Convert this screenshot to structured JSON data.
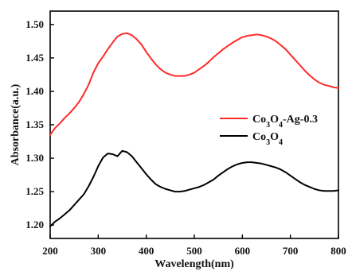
{
  "chart_data": {
    "type": "line",
    "xlabel": "Wavelength(nm)",
    "ylabel": "Absorbance(a.u.)",
    "xlim": [
      200,
      800
    ],
    "ylim": [
      1.18,
      1.52
    ],
    "xticks": [
      "200",
      "300",
      "400",
      "500",
      "600",
      "700",
      "800"
    ],
    "yticks": [
      "1.20",
      "1.25",
      "1.30",
      "1.35",
      "1.40",
      "1.45",
      "1.50"
    ],
    "grid": false,
    "legend_position": "center-right",
    "series": [
      {
        "name": "Co3O4-Ag-0.3",
        "name_parts": [
          {
            "text": "Co",
            "sub": false
          },
          {
            "text": "3",
            "sub": true
          },
          {
            "text": "O",
            "sub": false
          },
          {
            "text": "4",
            "sub": true
          },
          {
            "text": "-Ag-0.3",
            "sub": false
          }
        ],
        "color": "#ff2a2a",
        "x": [
          200,
          210,
          220,
          230,
          240,
          250,
          260,
          270,
          280,
          290,
          300,
          310,
          320,
          330,
          340,
          350,
          360,
          370,
          380,
          390,
          400,
          410,
          420,
          430,
          440,
          450,
          460,
          470,
          480,
          490,
          500,
          510,
          520,
          530,
          540,
          550,
          560,
          570,
          580,
          590,
          600,
          610,
          620,
          630,
          640,
          650,
          660,
          670,
          680,
          690,
          700,
          710,
          720,
          730,
          740,
          750,
          760,
          770,
          780,
          790,
          800
        ],
        "values": [
          1.335,
          1.345,
          1.352,
          1.36,
          1.367,
          1.375,
          1.384,
          1.396,
          1.41,
          1.428,
          1.442,
          1.452,
          1.463,
          1.473,
          1.482,
          1.486,
          1.487,
          1.484,
          1.478,
          1.47,
          1.459,
          1.449,
          1.44,
          1.433,
          1.428,
          1.425,
          1.423,
          1.423,
          1.423,
          1.425,
          1.428,
          1.433,
          1.438,
          1.444,
          1.451,
          1.457,
          1.463,
          1.468,
          1.473,
          1.477,
          1.481,
          1.483,
          1.484,
          1.485,
          1.484,
          1.482,
          1.479,
          1.475,
          1.469,
          1.463,
          1.455,
          1.447,
          1.439,
          1.431,
          1.424,
          1.418,
          1.413,
          1.41,
          1.408,
          1.406,
          1.405
        ]
      },
      {
        "name": "Co3O4",
        "name_parts": [
          {
            "text": "Co",
            "sub": false
          },
          {
            "text": "3",
            "sub": true
          },
          {
            "text": "O",
            "sub": false
          },
          {
            "text": "4",
            "sub": true
          }
        ],
        "color": "#000000",
        "x": [
          200,
          210,
          220,
          230,
          240,
          250,
          260,
          270,
          280,
          290,
          300,
          310,
          320,
          330,
          340,
          350,
          360,
          370,
          380,
          390,
          400,
          410,
          420,
          430,
          440,
          450,
          460,
          470,
          480,
          490,
          500,
          510,
          520,
          530,
          540,
          550,
          560,
          570,
          580,
          590,
          600,
          610,
          620,
          630,
          640,
          650,
          660,
          670,
          680,
          690,
          700,
          710,
          720,
          730,
          740,
          750,
          760,
          770,
          780,
          790,
          800
        ],
        "values": [
          1.198,
          1.205,
          1.21,
          1.216,
          1.222,
          1.23,
          1.238,
          1.246,
          1.258,
          1.272,
          1.288,
          1.301,
          1.307,
          1.306,
          1.303,
          1.311,
          1.309,
          1.303,
          1.294,
          1.285,
          1.276,
          1.268,
          1.261,
          1.257,
          1.254,
          1.252,
          1.25,
          1.25,
          1.251,
          1.253,
          1.255,
          1.257,
          1.26,
          1.264,
          1.268,
          1.274,
          1.279,
          1.284,
          1.288,
          1.291,
          1.293,
          1.294,
          1.294,
          1.293,
          1.292,
          1.29,
          1.288,
          1.286,
          1.283,
          1.279,
          1.274,
          1.269,
          1.264,
          1.26,
          1.257,
          1.254,
          1.252,
          1.251,
          1.251,
          1.251,
          1.252
        ]
      }
    ]
  }
}
